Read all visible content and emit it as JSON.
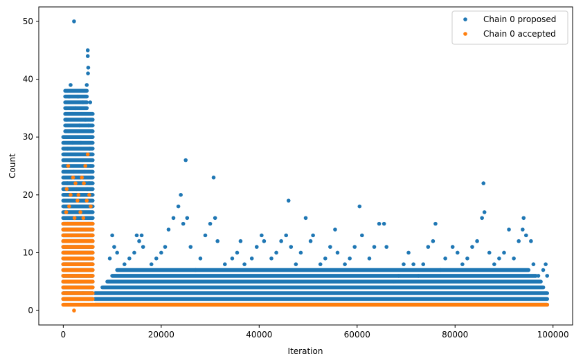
{
  "chart_data": {
    "type": "scatter",
    "xlabel": "Iteration",
    "ylabel": "Count",
    "xlim": [
      -5000,
      104000
    ],
    "ylim": [
      -2.5,
      52.5
    ],
    "xticks": [
      0,
      20000,
      40000,
      60000,
      80000,
      100000
    ],
    "yticks": [
      0,
      10,
      20,
      30,
      40,
      50
    ],
    "legend_position": "top-right",
    "grid": false,
    "series": [
      {
        "name": "Chain 0 proposed",
        "color": "#1f77b4",
        "points": [
          [
            2200,
            50
          ],
          [
            5000,
            45
          ],
          [
            5000,
            44
          ],
          [
            5100,
            42
          ],
          [
            5050,
            41
          ],
          [
            4800,
            39
          ],
          [
            1500,
            39
          ],
          [
            800,
            38
          ],
          [
            3000,
            37
          ],
          [
            1200,
            37
          ],
          [
            4000,
            36
          ],
          [
            5500,
            36
          ],
          [
            2500,
            35
          ],
          [
            600,
            35
          ],
          [
            3800,
            34
          ],
          [
            1800,
            34
          ],
          [
            4500,
            33
          ],
          [
            700,
            33
          ],
          [
            3300,
            32
          ],
          [
            5200,
            32
          ],
          [
            1100,
            31
          ],
          [
            2900,
            31
          ],
          [
            4200,
            30
          ],
          [
            600,
            30
          ],
          [
            3600,
            29
          ],
          [
            1900,
            29
          ],
          [
            5400,
            28
          ],
          [
            900,
            28
          ],
          [
            2600,
            27
          ],
          [
            4700,
            27
          ],
          [
            1300,
            26
          ],
          [
            3900,
            26
          ],
          [
            5600,
            25
          ],
          [
            700,
            25
          ],
          [
            2100,
            24
          ],
          [
            4400,
            24
          ],
          [
            1600,
            23
          ],
          [
            3100,
            23
          ],
          [
            5300,
            22
          ],
          [
            800,
            22
          ],
          [
            2700,
            21
          ],
          [
            4900,
            21
          ],
          [
            1000,
            20
          ],
          [
            3500,
            20
          ],
          [
            5700,
            19
          ],
          [
            2300,
            19
          ],
          [
            9500,
            9
          ],
          [
            10000,
            13
          ],
          [
            10400,
            11
          ],
          [
            11000,
            10
          ],
          [
            12500,
            8
          ],
          [
            13500,
            9
          ],
          [
            14500,
            10
          ],
          [
            15000,
            13
          ],
          [
            15500,
            12
          ],
          [
            16000,
            13
          ],
          [
            16300,
            11
          ],
          [
            18000,
            8
          ],
          [
            19000,
            9
          ],
          [
            20000,
            10
          ],
          [
            20800,
            11
          ],
          [
            21500,
            14
          ],
          [
            22500,
            16
          ],
          [
            23500,
            18
          ],
          [
            24000,
            20
          ],
          [
            24500,
            15
          ],
          [
            25000,
            26
          ],
          [
            25300,
            16
          ],
          [
            26000,
            11
          ],
          [
            27000,
            7
          ],
          [
            28000,
            9
          ],
          [
            29000,
            13
          ],
          [
            30000,
            15
          ],
          [
            30700,
            23
          ],
          [
            31000,
            16
          ],
          [
            31500,
            12
          ],
          [
            33000,
            8
          ],
          [
            34500,
            9
          ],
          [
            35500,
            10
          ],
          [
            36200,
            12
          ],
          [
            37000,
            8
          ],
          [
            38500,
            9
          ],
          [
            39500,
            11
          ],
          [
            40500,
            13
          ],
          [
            41000,
            12
          ],
          [
            42500,
            9
          ],
          [
            43500,
            10
          ],
          [
            44500,
            12
          ],
          [
            45500,
            13
          ],
          [
            46000,
            19
          ],
          [
            46500,
            11
          ],
          [
            47500,
            8
          ],
          [
            48500,
            10
          ],
          [
            49500,
            16
          ],
          [
            50500,
            12
          ],
          [
            51000,
            13
          ],
          [
            52500,
            8
          ],
          [
            53500,
            9
          ],
          [
            54500,
            11
          ],
          [
            55500,
            14
          ],
          [
            56000,
            10
          ],
          [
            57500,
            8
          ],
          [
            58500,
            9
          ],
          [
            59500,
            11
          ],
          [
            60500,
            18
          ],
          [
            61000,
            13
          ],
          [
            62500,
            9
          ],
          [
            63500,
            11
          ],
          [
            64500,
            15
          ],
          [
            65500,
            15
          ],
          [
            66000,
            11
          ],
          [
            67500,
            5
          ],
          [
            68500,
            6
          ],
          [
            69500,
            8
          ],
          [
            70500,
            10
          ],
          [
            71500,
            8
          ],
          [
            72500,
            6
          ],
          [
            73500,
            8
          ],
          [
            74500,
            11
          ],
          [
            75500,
            12
          ],
          [
            76000,
            15
          ],
          [
            77000,
            7
          ],
          [
            78000,
            9
          ],
          [
            79500,
            11
          ],
          [
            80500,
            10
          ],
          [
            81500,
            8
          ],
          [
            82500,
            9
          ],
          [
            83500,
            11
          ],
          [
            84500,
            12
          ],
          [
            85500,
            16
          ],
          [
            85800,
            22
          ],
          [
            86000,
            17
          ],
          [
            87000,
            10
          ],
          [
            88000,
            8
          ],
          [
            89000,
            9
          ],
          [
            90000,
            10
          ],
          [
            91000,
            14
          ],
          [
            92000,
            9
          ],
          [
            93000,
            12
          ],
          [
            93800,
            14
          ],
          [
            94000,
            16
          ],
          [
            94500,
            13
          ],
          [
            95500,
            12
          ],
          [
            96000,
            8
          ],
          [
            97000,
            6
          ],
          [
            98000,
            7
          ],
          [
            98500,
            8
          ],
          [
            98800,
            6
          ]
        ]
      },
      {
        "name": "Chain 0 accepted",
        "color": "#ff7f0e",
        "points": [
          [
            2200,
            0
          ],
          [
            5000,
            27
          ],
          [
            1000,
            25
          ],
          [
            4500,
            25
          ],
          [
            3800,
            23
          ],
          [
            2000,
            23
          ],
          [
            2500,
            22
          ],
          [
            4200,
            22
          ],
          [
            700,
            21
          ],
          [
            5300,
            20
          ],
          [
            1500,
            20
          ],
          [
            3100,
            20
          ],
          [
            4800,
            19
          ],
          [
            2900,
            19
          ],
          [
            1200,
            18
          ],
          [
            5600,
            18
          ],
          [
            3500,
            17
          ],
          [
            600,
            17
          ],
          [
            2300,
            16
          ],
          [
            4100,
            16
          ],
          [
            5200,
            15
          ],
          [
            900,
            15
          ],
          [
            2700,
            14
          ],
          [
            4600,
            14
          ],
          [
            1700,
            13
          ],
          [
            3300,
            12
          ],
          [
            5500,
            12
          ],
          [
            800,
            11
          ],
          [
            3900,
            11
          ],
          [
            2100,
            10
          ],
          [
            5000,
            10
          ],
          [
            1400,
            9
          ],
          [
            4400,
            9
          ],
          [
            3000,
            8
          ],
          [
            600,
            8
          ],
          [
            5800,
            7
          ],
          [
            2600,
            7
          ],
          [
            1900,
            6
          ],
          [
            4700,
            6
          ],
          [
            3600,
            5
          ],
          [
            1100,
            5
          ],
          [
            5400,
            4
          ],
          [
            2400,
            4
          ],
          [
            4000,
            3
          ],
          [
            700,
            3
          ],
          [
            3200,
            2
          ],
          [
            5100,
            2
          ],
          [
            1500,
            1
          ],
          [
            4300,
            1
          ]
        ]
      }
    ]
  }
}
